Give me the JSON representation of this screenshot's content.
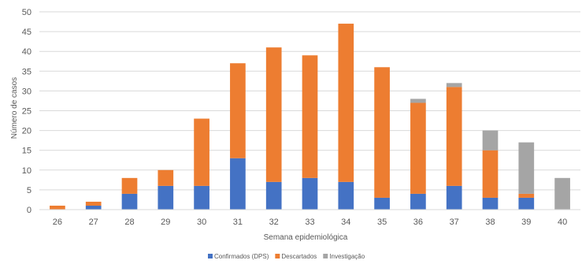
{
  "chart_data": {
    "type": "bar",
    "stacked": true,
    "categories": [
      "26",
      "27",
      "28",
      "29",
      "30",
      "31",
      "32",
      "33",
      "34",
      "35",
      "36",
      "37",
      "38",
      "39",
      "40"
    ],
    "series": [
      {
        "name": "Confirmados (DPS)",
        "color": "#4472C4",
        "values": [
          0,
          1,
          4,
          6,
          6,
          13,
          7,
          8,
          7,
          3,
          4,
          6,
          3,
          3,
          0
        ]
      },
      {
        "name": "Descartados",
        "color": "#ED7D31",
        "values": [
          1,
          1,
          4,
          4,
          17,
          24,
          34,
          31,
          40,
          33,
          23,
          25,
          12,
          1,
          0
        ]
      },
      {
        "name": "Investigação",
        "color": "#A5A5A5",
        "values": [
          0,
          0,
          0,
          0,
          0,
          0,
          0,
          0,
          0,
          0,
          1,
          1,
          5,
          13,
          8
        ]
      }
    ],
    "xlabel": "Semana epidemiológica",
    "ylabel": "Número de casos",
    "ylim": [
      0,
      50
    ],
    "yticks": [
      0,
      5,
      10,
      15,
      20,
      25,
      30,
      35,
      40,
      45,
      50
    ],
    "grid": true,
    "legend": "bottom"
  }
}
